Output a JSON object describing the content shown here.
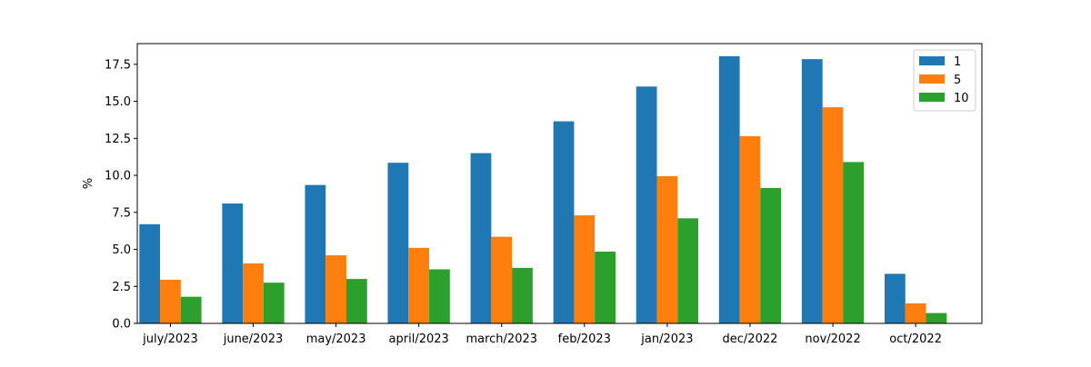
{
  "chart_data": {
    "type": "bar",
    "title": "",
    "xlabel": "",
    "ylabel": "%",
    "categories": [
      "july/2023",
      "june/2023",
      "may/2023",
      "april/2023",
      "march/2023",
      "feb/2023",
      "jan/2023",
      "dec/2022",
      "nov/2022",
      "oct/2022"
    ],
    "series": [
      {
        "name": "1",
        "color": "#1f77b4",
        "values": [
          6.7,
          8.1,
          9.35,
          10.85,
          11.5,
          13.65,
          16.0,
          18.05,
          17.85,
          3.35
        ]
      },
      {
        "name": "5",
        "color": "#ff7f0e",
        "values": [
          2.95,
          4.05,
          4.6,
          5.1,
          5.85,
          7.3,
          9.95,
          12.65,
          14.6,
          1.35
        ]
      },
      {
        "name": "10",
        "color": "#2ca02c",
        "values": [
          1.8,
          2.75,
          3.0,
          3.65,
          3.75,
          4.85,
          7.1,
          9.15,
          10.9,
          0.7
        ]
      }
    ],
    "ylim": [
      0,
      18.9
    ],
    "yticks": [
      0.0,
      2.5,
      5.0,
      7.5,
      10.0,
      12.5,
      15.0,
      17.5
    ],
    "ytick_labels": [
      "0.0",
      "2.5",
      "5.0",
      "7.5",
      "10.0",
      "12.5",
      "15.0",
      "17.5"
    ],
    "grid": false,
    "legend_position": "top-right"
  }
}
